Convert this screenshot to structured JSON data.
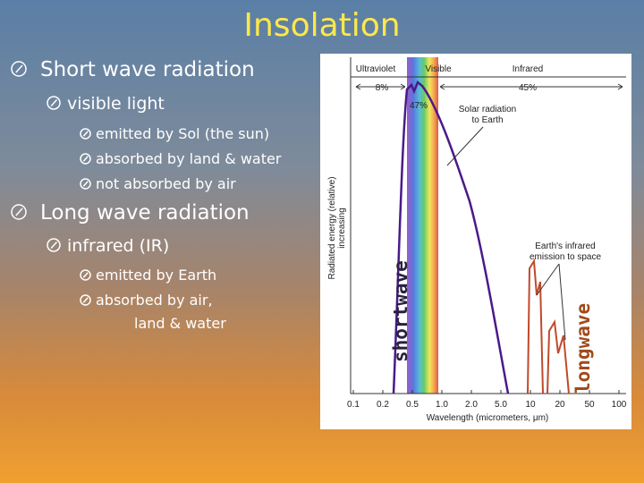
{
  "title": "Insolation",
  "bullets": [
    {
      "level": 1,
      "text": "Short wave radiation"
    },
    {
      "level": 2,
      "text": "visible light"
    },
    {
      "level": 3,
      "text": "emitted by Sol (the sun)"
    },
    {
      "level": 3,
      "text": "absorbed by land & water"
    },
    {
      "level": 3,
      "text": "not absorbed  by air"
    },
    {
      "level": 1,
      "text": "Long wave radiation"
    },
    {
      "level": 2,
      "text": "infrared (IR)"
    },
    {
      "level": 3,
      "text": "emitted by Earth"
    },
    {
      "level": 3,
      "text": "absorbed by air,"
    },
    {
      "level": 4,
      "text": "land & water"
    }
  ],
  "figure": {
    "bands": [
      "Ultraviolet",
      "Visible",
      "Infrared"
    ],
    "shares": [
      "8%",
      "47%",
      "45%"
    ],
    "solar_label": [
      "Solar radiation",
      "to Earth"
    ],
    "earth_label": [
      "Earth's infrared",
      "emission to space"
    ],
    "y_label": [
      "Radiated energy (relative)",
      "increasing"
    ],
    "x_label": "Wavelength (micrometers, μm)",
    "x_ticks": [
      "0.1",
      "0.2",
      "0.5",
      "1.0",
      "2.0",
      "5.0",
      "10",
      "20",
      "50",
      "100"
    ],
    "shortwave": "shortwave",
    "longwave": "longwave"
  }
}
